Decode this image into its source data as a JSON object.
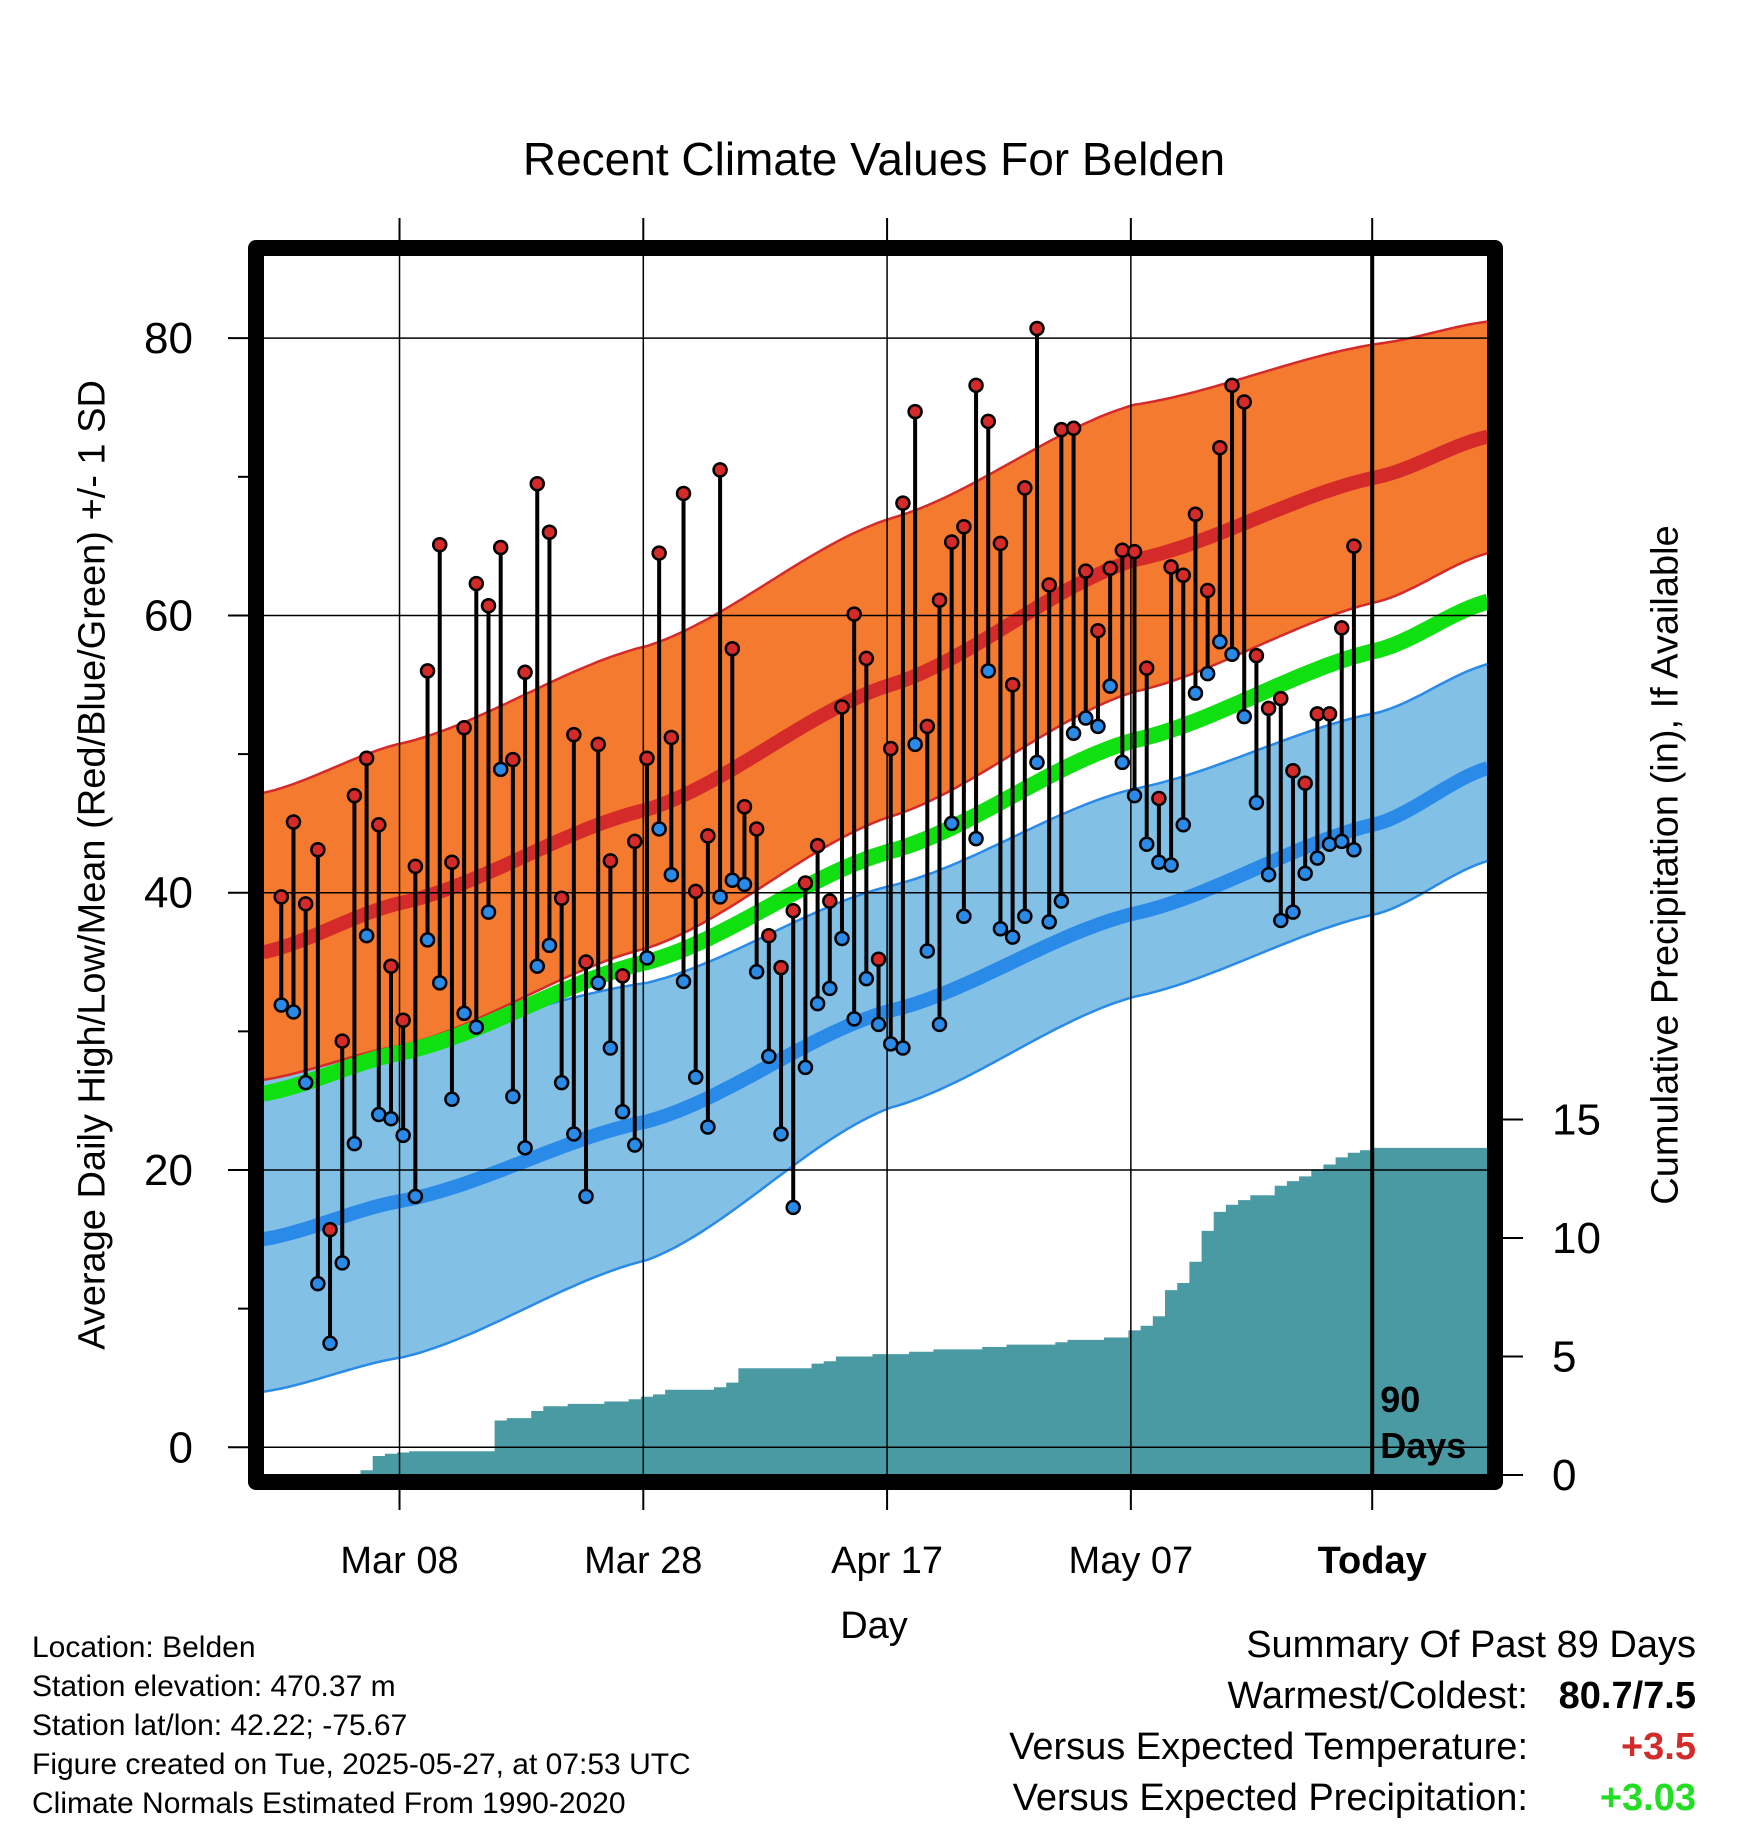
{
  "chart_data": {
    "type": "line",
    "title": "Recent Climate Values For Belden",
    "xlabel": "Day",
    "ylabel": "Average Daily High/Low/Mean (Red/Blue/Green) +/- 1 SD",
    "y2label": "Cumulative Precipitation (in), If Available",
    "x_tick_labels": [
      "Mar 08",
      "Mar 28",
      "Apr 17",
      "May 07",
      "Today"
    ],
    "y_ticks": [
      0,
      20,
      40,
      60,
      80
    ],
    "y2_ticks": [
      0,
      5,
      10,
      15
    ],
    "ylim": [
      -2,
      86
    ],
    "y2lim": [
      0,
      15.4
    ],
    "xlim": [
      -1.5,
      99
    ],
    "today_label": "90 Days",
    "colors": {
      "high_band": "#f47a30",
      "high_mean": "#d42a2a",
      "low_band": "#82c0e6",
      "low_mean": "#2a8ae8",
      "daily_mean": "#10e010",
      "precip": "#4a9aa4",
      "high_dot": "#d42a2a",
      "low_dot": "#2a8ae8"
    },
    "normals": {
      "day": [
        -1.5,
        10,
        30,
        50,
        70,
        90,
        99
      ],
      "high_mean": [
        35.7,
        39.3,
        46.0,
        55.0,
        64.0,
        70.0,
        72.9
      ],
      "high_upper": [
        47.2,
        50.8,
        57.8,
        67.0,
        75.2,
        79.6,
        81.2
      ],
      "high_lower": [
        26.5,
        29.0,
        36.0,
        45.5,
        54.5,
        61.0,
        64.5
      ],
      "low_mean": [
        15.0,
        17.8,
        23.5,
        31.5,
        38.5,
        45.0,
        49.0
      ],
      "low_upper": [
        26.8,
        29.5,
        33.5,
        40.5,
        47.5,
        53.0,
        56.5
      ],
      "low_lower": [
        4.0,
        6.5,
        13.5,
        24.5,
        32.5,
        38.5,
        42.3
      ],
      "daily_mean": [
        25.5,
        28.5,
        35.0,
        43.0,
        51.0,
        57.5,
        61.0
      ]
    },
    "series": [
      {
        "name": "High",
        "values": [
          39.7,
          45.1,
          39.2,
          43.1,
          15.7,
          29.3,
          47.0,
          49.7,
          44.9,
          34.7,
          30.8,
          41.9,
          56.0,
          65.1,
          42.2,
          51.9,
          62.3,
          60.7,
          64.9,
          49.6,
          55.9,
          69.5,
          66.0,
          39.6,
          51.4,
          35.0,
          50.7,
          42.3,
          34.0,
          43.7,
          49.7,
          64.5,
          51.2,
          68.8,
          40.1,
          44.1,
          70.5,
          57.6,
          46.2,
          44.6,
          36.9,
          34.6,
          38.7,
          40.7,
          43.4,
          39.4,
          53.4,
          60.1,
          56.9,
          35.2,
          50.4,
          68.1,
          74.7,
          52.0,
          61.1,
          65.3,
          66.4,
          76.6,
          74.0,
          65.2,
          55.0,
          69.2,
          80.7,
          62.2,
          73.4,
          73.5,
          63.2,
          58.9,
          63.4,
          64.7,
          64.6,
          56.2,
          46.8,
          63.5,
          62.9,
          67.3,
          61.8,
          72.1,
          76.6,
          75.4,
          57.1,
          53.3,
          54.0,
          48.8,
          47.9,
          52.9,
          52.9,
          59.1,
          65.0
        ]
      },
      {
        "name": "Low",
        "values": [
          31.9,
          31.4,
          26.3,
          11.8,
          7.5,
          13.3,
          21.9,
          36.9,
          24.0,
          23.7,
          22.5,
          18.1,
          36.6,
          33.5,
          25.1,
          31.3,
          30.3,
          38.6,
          48.9,
          25.3,
          21.6,
          34.7,
          36.2,
          26.3,
          22.6,
          18.1,
          33.5,
          28.8,
          24.2,
          21.8,
          35.3,
          44.6,
          41.3,
          33.6,
          26.7,
          23.1,
          39.7,
          40.9,
          40.6,
          34.3,
          28.2,
          22.6,
          17.3,
          27.4,
          32.0,
          33.1,
          36.7,
          30.9,
          33.8,
          30.5,
          29.1,
          28.8,
          50.7,
          35.8,
          30.5,
          45.0,
          38.3,
          43.9,
          56.0,
          37.4,
          36.8,
          38.3,
          49.4,
          37.9,
          39.4,
          51.5,
          52.6,
          52.0,
          54.9,
          49.4,
          47.0,
          43.5,
          42.2,
          42.0,
          44.9,
          54.4,
          55.8,
          58.1,
          57.2,
          52.7,
          46.5,
          41.3,
          38.0,
          38.6,
          41.4,
          42.5,
          43.5,
          43.7,
          43.1
        ]
      },
      {
        "name": "Precipitation",
        "values": [
          0,
          0,
          0,
          0,
          0,
          0,
          0.02,
          0.2,
          0.8,
          0.9,
          0.95,
          1.0,
          1.0,
          1.0,
          1.0,
          1.0,
          1.0,
          1.0,
          2.3,
          2.4,
          2.4,
          2.7,
          2.9,
          2.9,
          3.0,
          3.0,
          3.0,
          3.1,
          3.1,
          3.2,
          3.3,
          3.4,
          3.6,
          3.6,
          3.6,
          3.6,
          3.7,
          3.9,
          4.5,
          4.5,
          4.5,
          4.5,
          4.5,
          4.5,
          4.7,
          4.8,
          5.0,
          5.0,
          5.0,
          5.1,
          5.1,
          5.1,
          5.2,
          5.2,
          5.3,
          5.3,
          5.3,
          5.3,
          5.4,
          5.4,
          5.5,
          5.5,
          5.5,
          5.5,
          5.6,
          5.7,
          5.7,
          5.7,
          5.8,
          5.8,
          6.1,
          6.3,
          6.7,
          7.8,
          8.1,
          9.0,
          10.3,
          11.1,
          11.4,
          11.6,
          11.8,
          11.8,
          12.2,
          12.4,
          12.6,
          12.9,
          13.1,
          13.4,
          13.6,
          13.7,
          13.8,
          13.8,
          13.8,
          13.8,
          13.8,
          13.8,
          13.8,
          13.8,
          13.8
        ]
      }
    ]
  },
  "footer": {
    "location": "Location: Belden",
    "elevation": "Station elevation: 470.37 m",
    "latlon": "Station lat/lon: 42.22; -75.67",
    "created": "Figure created on Tue, 2025-05-27, at 07:53 UTC",
    "normals": "Climate Normals Estimated From 1990-2020"
  },
  "summary": {
    "heading": "Summary Of Past 89 Days",
    "warmest_label": "Warmest/Coldest:",
    "warmest_value": "80.7/7.5",
    "temp_label": "Versus Expected Temperature:",
    "temp_value": "+3.5",
    "temp_color": "#d42a2a",
    "precip_label": "Versus Expected Precipitation:",
    "precip_value": "+3.03",
    "precip_color": "#22dd22"
  }
}
